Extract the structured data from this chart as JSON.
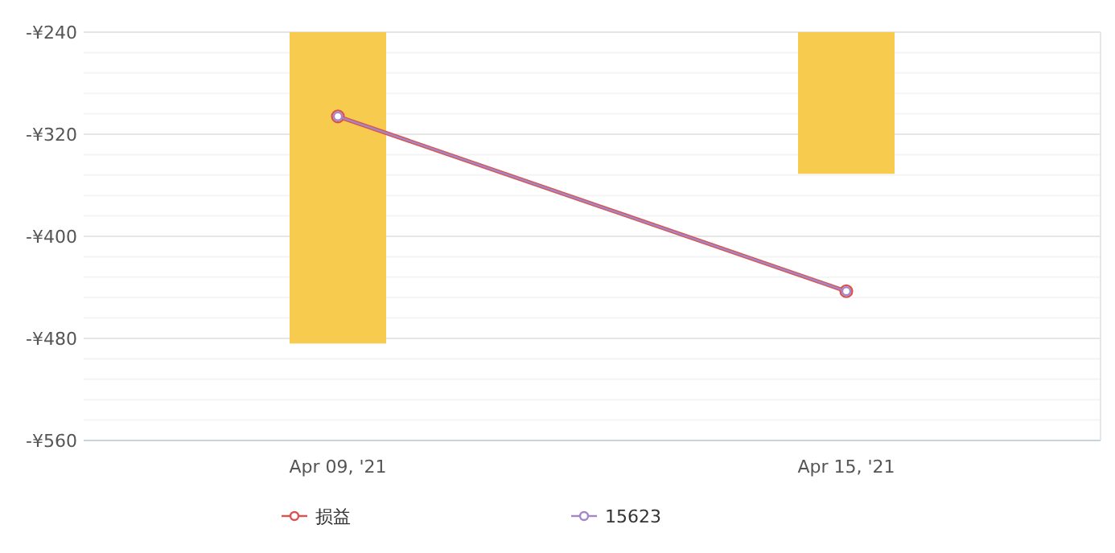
{
  "chart_data": {
    "type": "bar",
    "categories": [
      "Apr 09, '21",
      "Apr 15, '21"
    ],
    "series": [
      {
        "color": "#f7cb4d",
        "values": [
          -484,
          -351
        ]
      },
      {
        "type": "line",
        "name": "损益",
        "color": "#d9534f",
        "values": [
          -306,
          -443
        ]
      },
      {
        "type": "line",
        "name": "15623",
        "color": "#a487c9",
        "values": [
          -306,
          -443
        ]
      }
    ],
    "ylim": [
      -560,
      -240
    ],
    "yticks": [
      {
        "value": -560,
        "label": "-¥560"
      },
      {
        "value": -480,
        "label": "-¥480"
      },
      {
        "value": -400,
        "label": "-¥400"
      },
      {
        "value": -320,
        "label": "-¥320"
      },
      {
        "value": -240,
        "label": "-¥240"
      }
    ],
    "grid": true,
    "legend": "bottom",
    "marker": "circle"
  }
}
